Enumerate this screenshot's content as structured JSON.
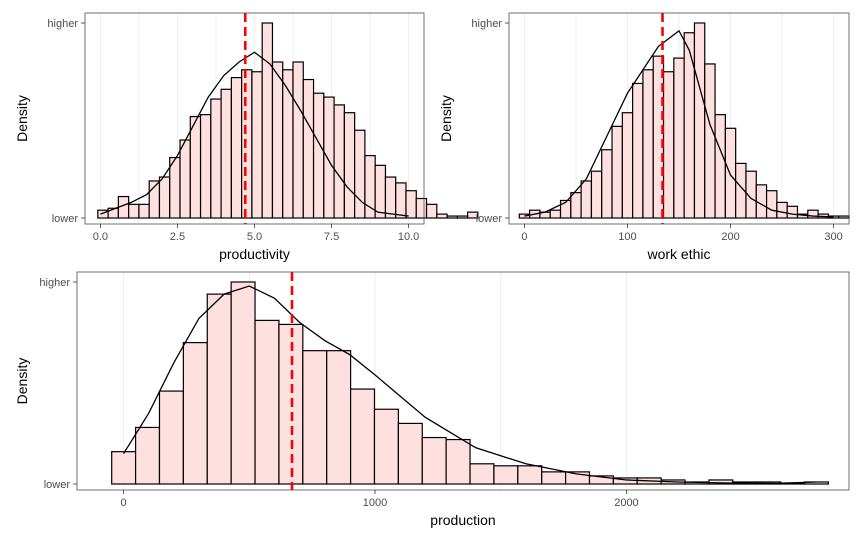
{
  "chart_data": [
    {
      "type": "bar",
      "xlabel": "productivity",
      "ylabel": "Density",
      "y_tick_labels": [
        "lower",
        "higher"
      ],
      "x_ticks": [
        0,
        2.5,
        5,
        7.5,
        10
      ],
      "x_tick_labels": [
        "0.0",
        "2.5",
        "5.0",
        "7.5",
        "10.0"
      ],
      "xlim": [
        -0.5,
        10.5
      ],
      "ylim": [
        0,
        1.02
      ],
      "bin_width": 0.3333,
      "bins_start": -0.0833,
      "bin_heights": [
        0.04,
        0.05,
        0.11,
        0.07,
        0.07,
        0.19,
        0.21,
        0.31,
        0.4,
        0.52,
        0.53,
        0.61,
        0.66,
        0.72,
        0.76,
        0.75,
        1.0,
        0.8,
        0.76,
        0.8,
        0.71,
        0.64,
        0.62,
        0.58,
        0.54,
        0.45,
        0.32,
        0.27,
        0.21,
        0.18,
        0.14,
        0.1,
        0.07,
        0.02,
        0.01,
        0.01,
        0.03
      ],
      "density_curve": {
        "x": [
          0,
          0.5,
          1,
          1.5,
          2,
          2.5,
          3,
          3.5,
          4,
          4.5,
          5,
          5.5,
          6,
          6.5,
          7,
          7.5,
          8,
          8.5,
          9,
          9.5,
          10
        ],
        "y": [
          0.02,
          0.05,
          0.08,
          0.12,
          0.2,
          0.32,
          0.47,
          0.62,
          0.73,
          0.8,
          0.85,
          0.79,
          0.68,
          0.55,
          0.41,
          0.27,
          0.16,
          0.08,
          0.03,
          0.02,
          0.01
        ]
      },
      "mean_line": 4.7,
      "fill_color": "#ffe0e0",
      "bar_outline": "#000000",
      "mean_line_color": "#ff0000"
    },
    {
      "type": "bar",
      "xlabel": "work ethic",
      "ylabel": "Density",
      "y_tick_labels": [
        "lower",
        "higher"
      ],
      "x_ticks": [
        0,
        100,
        200,
        300
      ],
      "x_tick_labels": [
        "0",
        "100",
        "200",
        "300"
      ],
      "xlim": [
        -15,
        315
      ],
      "ylim": [
        0,
        1.02
      ],
      "bin_width": 10,
      "bins_start": -5,
      "bin_heights": [
        0.02,
        0.04,
        0.03,
        0.04,
        0.09,
        0.13,
        0.19,
        0.24,
        0.35,
        0.47,
        0.54,
        0.69,
        0.76,
        0.83,
        0.75,
        0.82,
        0.95,
        1.0,
        0.79,
        0.53,
        0.46,
        0.28,
        0.24,
        0.17,
        0.14,
        0.08,
        0.06,
        0.02,
        0.04,
        0.02,
        0.01,
        0.01
      ],
      "density_curve": {
        "x": [
          0,
          20,
          40,
          60,
          80,
          100,
          120,
          130,
          140,
          150,
          160,
          180,
          200,
          220,
          240,
          260,
          280,
          300
        ],
        "y": [
          0.01,
          0.03,
          0.08,
          0.2,
          0.42,
          0.64,
          0.8,
          0.88,
          0.92,
          0.96,
          0.86,
          0.48,
          0.22,
          0.1,
          0.04,
          0.02,
          0.01,
          0.005
        ]
      },
      "mean_line": 134,
      "fill_color": "#ffe0e0",
      "bar_outline": "#000000",
      "mean_line_color": "#ff0000"
    },
    {
      "type": "bar",
      "xlabel": "production",
      "ylabel": "Density",
      "y_tick_labels": [
        "lower",
        "higher"
      ],
      "x_ticks": [
        0,
        1000,
        2000
      ],
      "x_tick_labels": [
        "0",
        "1000",
        "2000"
      ],
      "xlim": [
        -185,
        2885
      ],
      "ylim": [
        0,
        1.02
      ],
      "bin_width": 95,
      "bins_start": -47,
      "bin_heights": [
        0.16,
        0.28,
        0.46,
        0.7,
        0.94,
        1.0,
        0.81,
        0.79,
        0.66,
        0.66,
        0.47,
        0.37,
        0.3,
        0.23,
        0.22,
        0.1,
        0.09,
        0.09,
        0.06,
        0.06,
        0.04,
        0.03,
        0.03,
        0.02,
        0.01,
        0.02,
        0.01,
        0.01,
        0.005,
        0.01
      ],
      "density_curve": {
        "x": [
          0,
          100,
          200,
          300,
          400,
          500,
          600,
          700,
          800,
          900,
          1000,
          1200,
          1400,
          1600,
          1800,
          2000,
          2200,
          2400,
          2600,
          2750
        ],
        "y": [
          0.15,
          0.35,
          0.6,
          0.82,
          0.94,
          0.98,
          0.92,
          0.8,
          0.71,
          0.64,
          0.54,
          0.33,
          0.18,
          0.1,
          0.05,
          0.02,
          0.01,
          0.005,
          0.003,
          0.01
        ]
      },
      "mean_line": 670,
      "fill_color": "#ffe0e0",
      "bar_outline": "#000000",
      "mean_line_color": "#ff0000"
    }
  ]
}
